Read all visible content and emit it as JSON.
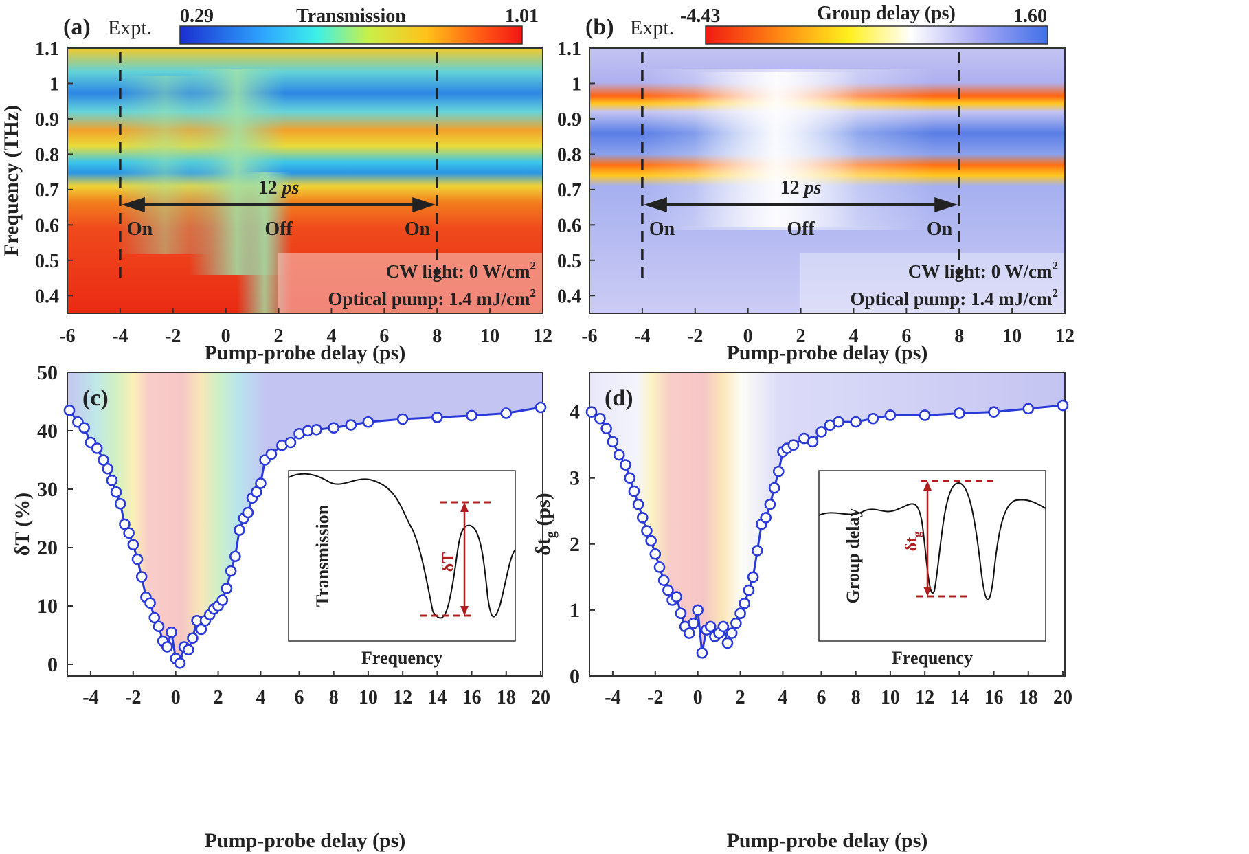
{
  "chart_data": [
    {
      "panel": "(a)",
      "type": "heatmap",
      "tag": "Expt.",
      "colorbar": {
        "label": "Transmission",
        "min": "0.29",
        "max": "1.01"
      },
      "xlabel": "Pump-probe delay (ps)",
      "ylabel": "Frequency (THz)",
      "xlim": [
        -6,
        12
      ],
      "ylim": [
        0.35,
        1.1
      ],
      "xticks": [
        "-6",
        "-4",
        "-2",
        "0",
        "2",
        "4",
        "6",
        "8",
        "10",
        "12"
      ],
      "yticks": [
        "0.4",
        "0.5",
        "0.6",
        "0.7",
        "0.8",
        "0.9",
        "1",
        "1.1"
      ],
      "dashed_lines_x": [
        -4,
        8
      ],
      "arrow_label": "12",
      "arrow_unit": "ps",
      "state_labels": [
        "On",
        "Off",
        "On"
      ],
      "annotation": {
        "line1": "CW light: 0 W/cm",
        "line2": "Optical pump: 1.4 mJ/cm",
        "sup": "2"
      }
    },
    {
      "panel": "(b)",
      "type": "heatmap",
      "tag": "Expt.",
      "colorbar": {
        "label": "Group delay (ps)",
        "min": "-4.43",
        "max": "1.60"
      },
      "xlabel": "Pump-probe delay (ps)",
      "ylabel": "",
      "xlim": [
        -6,
        12
      ],
      "ylim": [
        0.35,
        1.1
      ],
      "xticks": [
        "-6",
        "-4",
        "-2",
        "0",
        "2",
        "4",
        "6",
        "8",
        "10",
        "12"
      ],
      "yticks": [
        "0.4",
        "0.5",
        "0.6",
        "0.7",
        "0.8",
        "0.9",
        "1",
        "1.1"
      ],
      "dashed_lines_x": [
        -4,
        8
      ],
      "arrow_label": "12",
      "arrow_unit": "ps",
      "state_labels": [
        "On",
        "Off",
        "On"
      ],
      "annotation": {
        "line1": "CW light: 0 W/cm",
        "line2": "Optical pump: 1.4 mJ/cm",
        "sup": "2"
      }
    },
    {
      "panel": "(c)",
      "type": "line",
      "xlabel": "Pump-probe delay (ps)",
      "ylabel": "δT (%)",
      "ylim": [
        -2,
        50
      ],
      "xticks": [
        "-4",
        "-2",
        "0",
        "2",
        "4",
        "6",
        "8",
        "10",
        "12",
        "14",
        "16",
        "18",
        "20"
      ],
      "yticks": [
        "0",
        "10",
        "20",
        "30",
        "40",
        "50"
      ],
      "series": [
        {
          "name": "δT",
          "x": [
            -5,
            -4.6,
            -4.3,
            -4,
            -3.7,
            -3.4,
            -3.2,
            -3,
            -2.8,
            -2.6,
            -2.4,
            -2.2,
            -2,
            -1.8,
            -1.6,
            -1.4,
            -1.2,
            -1,
            -0.8,
            -0.6,
            -0.4,
            -0.2,
            0,
            0.2,
            0.4,
            0.6,
            0.8,
            1,
            1.2,
            1.4,
            1.6,
            1.8,
            2,
            2.2,
            2.4,
            2.6,
            2.8,
            3,
            3.2,
            3.4,
            3.6,
            3.8,
            4,
            4.2,
            4.5,
            5,
            5.5,
            6,
            6.5,
            7,
            8,
            9,
            10,
            12,
            14,
            16,
            18,
            20
          ],
          "y": [
            43.5,
            41.5,
            40.5,
            38,
            37,
            35,
            33.5,
            31.5,
            29.5,
            27.5,
            24,
            22.5,
            20.5,
            18,
            15,
            11.5,
            10.5,
            8,
            6.5,
            4,
            3,
            5.5,
            1,
            0.2,
            3,
            2.5,
            4.5,
            7.5,
            6,
            7.5,
            8.5,
            9.5,
            10,
            11,
            13,
            16,
            18.5,
            23,
            25,
            26,
            28.5,
            29.5,
            31,
            35,
            36,
            37.5,
            38,
            39.5,
            40,
            40.2,
            40.5,
            41,
            41.5,
            42,
            42.3,
            42.6,
            43,
            44
          ]
        }
      ],
      "inset": {
        "xlabel": "Frequency",
        "ylabel": "Transmission",
        "marker": "δT"
      }
    },
    {
      "panel": "(d)",
      "type": "line",
      "xlabel": "Pump-probe delay (ps)",
      "ylabel": "δt",
      "ylabel_sub": "g",
      "ylabel_unit": " (ps)",
      "ylim": [
        0,
        4.6
      ],
      "xticks": [
        "-4",
        "-2",
        "0",
        "2",
        "4",
        "6",
        "8",
        "10",
        "12",
        "14",
        "16",
        "18",
        "20"
      ],
      "yticks": [
        "0",
        "1",
        "2",
        "3",
        "4"
      ],
      "series": [
        {
          "name": "δtg",
          "x": [
            -5,
            -4.6,
            -4.3,
            -4,
            -3.7,
            -3.4,
            -3.2,
            -3,
            -2.8,
            -2.6,
            -2.4,
            -2.2,
            -2,
            -1.8,
            -1.6,
            -1.4,
            -1.2,
            -1,
            -0.8,
            -0.6,
            -0.4,
            -0.2,
            0,
            0.2,
            0.4,
            0.6,
            0.8,
            1,
            1.2,
            1.4,
            1.6,
            1.8,
            2,
            2.2,
            2.4,
            2.6,
            2.8,
            3,
            3.2,
            3.4,
            3.6,
            3.8,
            4,
            4.2,
            4.5,
            5,
            5.5,
            6,
            6.5,
            7,
            8,
            9,
            10,
            12,
            14,
            16,
            18,
            20
          ],
          "y": [
            4,
            3.9,
            3.75,
            3.55,
            3.35,
            3.2,
            3,
            2.8,
            2.6,
            2.4,
            2.2,
            2.05,
            1.85,
            1.65,
            1.45,
            1.3,
            1.15,
            1.2,
            0.95,
            0.75,
            0.65,
            0.8,
            1,
            0.35,
            0.7,
            0.75,
            0.6,
            0.65,
            0.75,
            0.5,
            0.65,
            0.8,
            0.95,
            1.1,
            1.3,
            1.5,
            1.9,
            2.3,
            2.4,
            2.6,
            2.85,
            3.1,
            3.4,
            3.45,
            3.5,
            3.6,
            3.55,
            3.7,
            3.8,
            3.85,
            3.85,
            3.9,
            3.95,
            3.95,
            3.98,
            4.0,
            4.05,
            4.1
          ]
        }
      ],
      "inset": {
        "xlabel": "Frequency",
        "ylabel": "Group delay",
        "marker": "δt",
        "marker_sub": "g"
      }
    }
  ]
}
